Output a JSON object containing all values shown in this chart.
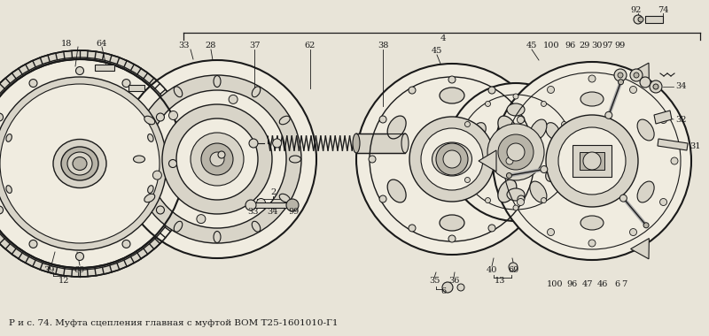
{
  "caption": "Р и с. 74. Муфта сцепления главная с муфтой ВОМ Т25-1601010-Г1",
  "bg_color": "#e8e4d8",
  "lc": "#1a1a1a",
  "fc_white": "#f0ece0",
  "fc_light": "#d8d4c8",
  "fc_mid": "#b8b4a8",
  "caption_fontsize": 7.5
}
